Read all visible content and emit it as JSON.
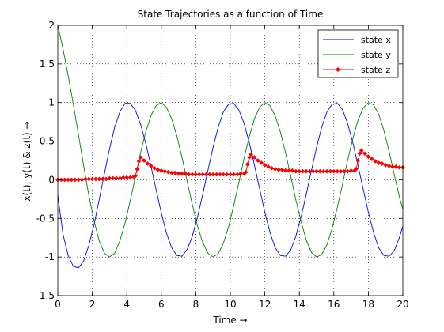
{
  "chart_data": {
    "type": "line",
    "title": "State Trajectories as a function of Time",
    "xlabel": "Time →",
    "ylabel": "x(t), y(t) & z(t) →",
    "xlim": [
      0,
      20
    ],
    "ylim": [
      -1.5,
      2
    ],
    "xticks": [
      0,
      2,
      4,
      6,
      8,
      10,
      12,
      14,
      16,
      18,
      20
    ],
    "yticks": [
      -1.5,
      -1,
      -0.5,
      0,
      0.5,
      1,
      1.5,
      2
    ],
    "grid": true,
    "legend_position": "top-right",
    "series": [
      {
        "name": "state x",
        "color": "#0000ff",
        "marker": "none",
        "x": [
          0,
          0.3,
          0.6,
          0.9,
          1.2,
          1.5,
          1.8,
          2.1,
          2.4,
          2.7,
          3.0,
          3.3,
          3.6,
          3.9,
          4.2,
          4.5,
          4.8,
          5.1,
          5.4,
          5.7,
          6.0,
          6.3,
          6.6,
          6.9,
          7.2,
          7.5,
          7.8,
          8.1,
          8.4,
          8.7,
          9.0,
          9.3,
          9.6,
          9.9,
          10.2,
          10.5,
          10.8,
          11.1,
          11.4,
          11.7,
          12.0,
          12.3,
          12.6,
          12.9,
          13.2,
          13.5,
          13.8,
          14.1,
          14.4,
          14.7,
          15.0,
          15.3,
          15.6,
          15.9,
          16.2,
          16.5,
          16.8,
          17.1,
          17.4,
          17.7,
          18.0,
          18.3,
          18.6,
          18.9,
          19.2,
          19.5,
          19.8,
          20.0
        ],
        "y": [
          -0.2,
          -0.7,
          -0.98,
          -1.12,
          -1.14,
          -1.05,
          -0.85,
          -0.58,
          -0.26,
          0.08,
          0.4,
          0.68,
          0.88,
          0.99,
          0.99,
          0.9,
          0.72,
          0.47,
          0.18,
          -0.13,
          -0.43,
          -0.69,
          -0.88,
          -0.98,
          -0.99,
          -0.9,
          -0.73,
          -0.48,
          -0.19,
          0.12,
          0.42,
          0.68,
          0.88,
          0.98,
          0.99,
          0.9,
          0.73,
          0.48,
          0.19,
          -0.12,
          -0.42,
          -0.68,
          -0.88,
          -0.98,
          -0.99,
          -0.91,
          -0.73,
          -0.48,
          -0.19,
          0.12,
          0.42,
          0.68,
          0.88,
          0.98,
          0.99,
          0.91,
          0.73,
          0.48,
          0.19,
          -0.12,
          -0.42,
          -0.68,
          -0.88,
          -0.98,
          -0.99,
          -0.92,
          -0.75,
          -0.6
        ]
      },
      {
        "name": "state y",
        "color": "#008000",
        "marker": "none",
        "x": [
          0,
          0.3,
          0.6,
          0.9,
          1.2,
          1.5,
          1.8,
          2.1,
          2.4,
          2.7,
          3.0,
          3.3,
          3.6,
          3.9,
          4.2,
          4.5,
          4.8,
          5.1,
          5.4,
          5.7,
          6.0,
          6.3,
          6.6,
          6.9,
          7.2,
          7.5,
          7.8,
          8.1,
          8.4,
          8.7,
          9.0,
          9.3,
          9.6,
          9.9,
          10.2,
          10.5,
          10.8,
          11.1,
          11.4,
          11.7,
          12.0,
          12.3,
          12.6,
          12.9,
          13.2,
          13.5,
          13.8,
          14.1,
          14.4,
          14.7,
          15.0,
          15.3,
          15.6,
          15.9,
          16.2,
          16.5,
          16.8,
          17.1,
          17.4,
          17.7,
          18.0,
          18.3,
          18.6,
          18.9,
          19.2,
          19.5,
          19.8,
          20.0
        ],
        "y": [
          2.0,
          1.7,
          1.35,
          0.98,
          0.58,
          0.18,
          -0.2,
          -0.53,
          -0.79,
          -0.95,
          -1.0,
          -0.95,
          -0.79,
          -0.56,
          -0.27,
          0.04,
          0.35,
          0.62,
          0.83,
          0.96,
          1.0,
          0.94,
          0.79,
          0.57,
          0.29,
          -0.02,
          -0.32,
          -0.6,
          -0.81,
          -0.95,
          -1.0,
          -0.96,
          -0.82,
          -0.61,
          -0.33,
          -0.03,
          0.28,
          0.56,
          0.79,
          0.94,
          1.0,
          0.96,
          0.83,
          0.62,
          0.35,
          0.05,
          -0.26,
          -0.54,
          -0.78,
          -0.94,
          -1.0,
          -0.97,
          -0.84,
          -0.63,
          -0.36,
          -0.06,
          0.25,
          0.53,
          0.77,
          0.93,
          1.0,
          0.97,
          0.85,
          0.64,
          0.37,
          0.07,
          -0.22,
          -0.38
        ]
      },
      {
        "name": "state z",
        "color": "#ff0000",
        "marker": "diamond",
        "x": [
          0,
          0.2,
          0.4,
          0.6,
          0.8,
          1.0,
          1.2,
          1.4,
          1.6,
          1.8,
          2.0,
          2.2,
          2.4,
          2.6,
          2.8,
          3.0,
          3.2,
          3.4,
          3.6,
          3.8,
          4.0,
          4.2,
          4.4,
          4.5,
          4.6,
          4.7,
          4.8,
          5.0,
          5.2,
          5.4,
          5.6,
          5.8,
          6.0,
          6.2,
          6.4,
          6.6,
          6.8,
          7.0,
          7.2,
          7.4,
          7.6,
          7.8,
          8.0,
          8.2,
          8.4,
          8.6,
          8.8,
          9.0,
          9.2,
          9.4,
          9.6,
          9.8,
          10.0,
          10.2,
          10.4,
          10.6,
          10.8,
          10.9,
          11.0,
          11.1,
          11.2,
          11.4,
          11.6,
          11.8,
          12.0,
          12.2,
          12.4,
          12.6,
          12.8,
          13.0,
          13.2,
          13.4,
          13.6,
          13.8,
          14.0,
          14.2,
          14.4,
          14.6,
          14.8,
          15.0,
          15.2,
          15.4,
          15.6,
          15.8,
          16.0,
          16.2,
          16.4,
          16.6,
          16.8,
          17.0,
          17.2,
          17.3,
          17.4,
          17.5,
          17.6,
          17.8,
          18.0,
          18.2,
          18.4,
          18.6,
          18.8,
          19.0,
          19.2,
          19.4,
          19.6,
          19.8,
          20.0
        ],
        "y": [
          0.0,
          0.0,
          0.0,
          0.0,
          0.0,
          0.0,
          0.0,
          0.0,
          0.01,
          0.01,
          0.01,
          0.01,
          0.01,
          0.01,
          0.01,
          0.02,
          0.02,
          0.02,
          0.02,
          0.03,
          0.03,
          0.03,
          0.04,
          0.05,
          0.14,
          0.24,
          0.29,
          0.25,
          0.21,
          0.18,
          0.15,
          0.13,
          0.12,
          0.11,
          0.1,
          0.09,
          0.09,
          0.08,
          0.08,
          0.08,
          0.07,
          0.07,
          0.07,
          0.07,
          0.07,
          0.07,
          0.07,
          0.07,
          0.07,
          0.07,
          0.07,
          0.07,
          0.07,
          0.07,
          0.07,
          0.08,
          0.08,
          0.1,
          0.2,
          0.29,
          0.33,
          0.29,
          0.25,
          0.22,
          0.19,
          0.17,
          0.15,
          0.14,
          0.13,
          0.13,
          0.12,
          0.12,
          0.12,
          0.11,
          0.11,
          0.11,
          0.11,
          0.11,
          0.11,
          0.11,
          0.11,
          0.11,
          0.11,
          0.11,
          0.11,
          0.11,
          0.11,
          0.11,
          0.11,
          0.12,
          0.12,
          0.14,
          0.25,
          0.34,
          0.38,
          0.34,
          0.3,
          0.27,
          0.24,
          0.22,
          0.21,
          0.19,
          0.18,
          0.17,
          0.17,
          0.16,
          0.16
        ]
      }
    ]
  }
}
